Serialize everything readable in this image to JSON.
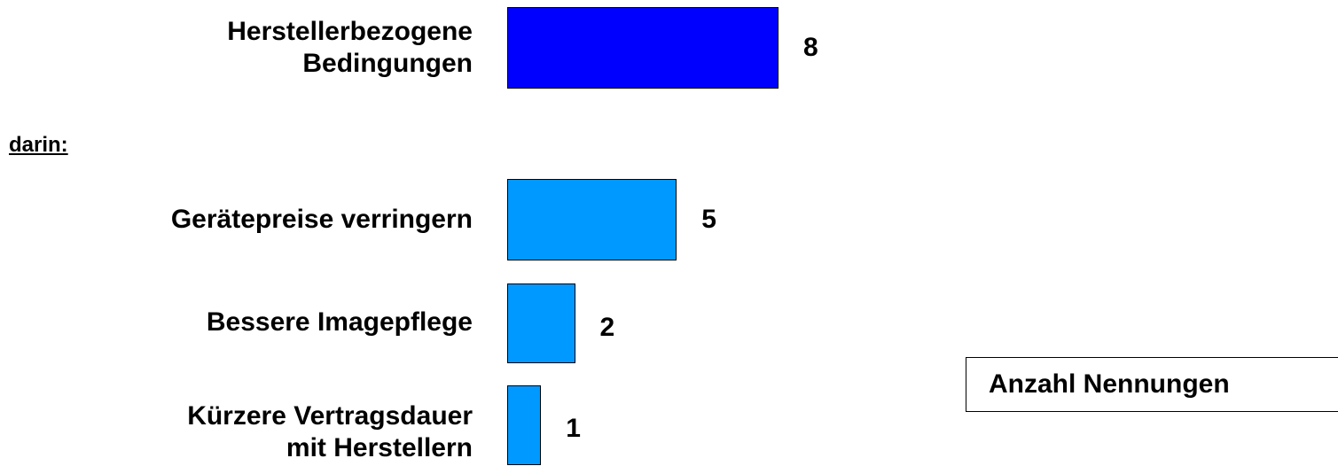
{
  "chart_data": {
    "type": "bar",
    "orientation": "horizontal",
    "section_label": "darin:",
    "value_box_label": "Anzahl Nennungen",
    "bars": [
      {
        "label": [
          "Herstellerbezogene",
          "Bedingungen"
        ],
        "value": 8,
        "color": "#0000FF"
      },
      {
        "label": [
          "Gerätepreise verringern"
        ],
        "value": 5,
        "color": "#0099FF"
      },
      {
        "label": [
          "Bessere Imagepflege"
        ],
        "value": 2,
        "color": "#0099FF"
      },
      {
        "label": [
          "Kürzere Vertragsdauer",
          "mit Herstellern"
        ],
        "value": 1,
        "color": "#0099FF"
      }
    ]
  }
}
